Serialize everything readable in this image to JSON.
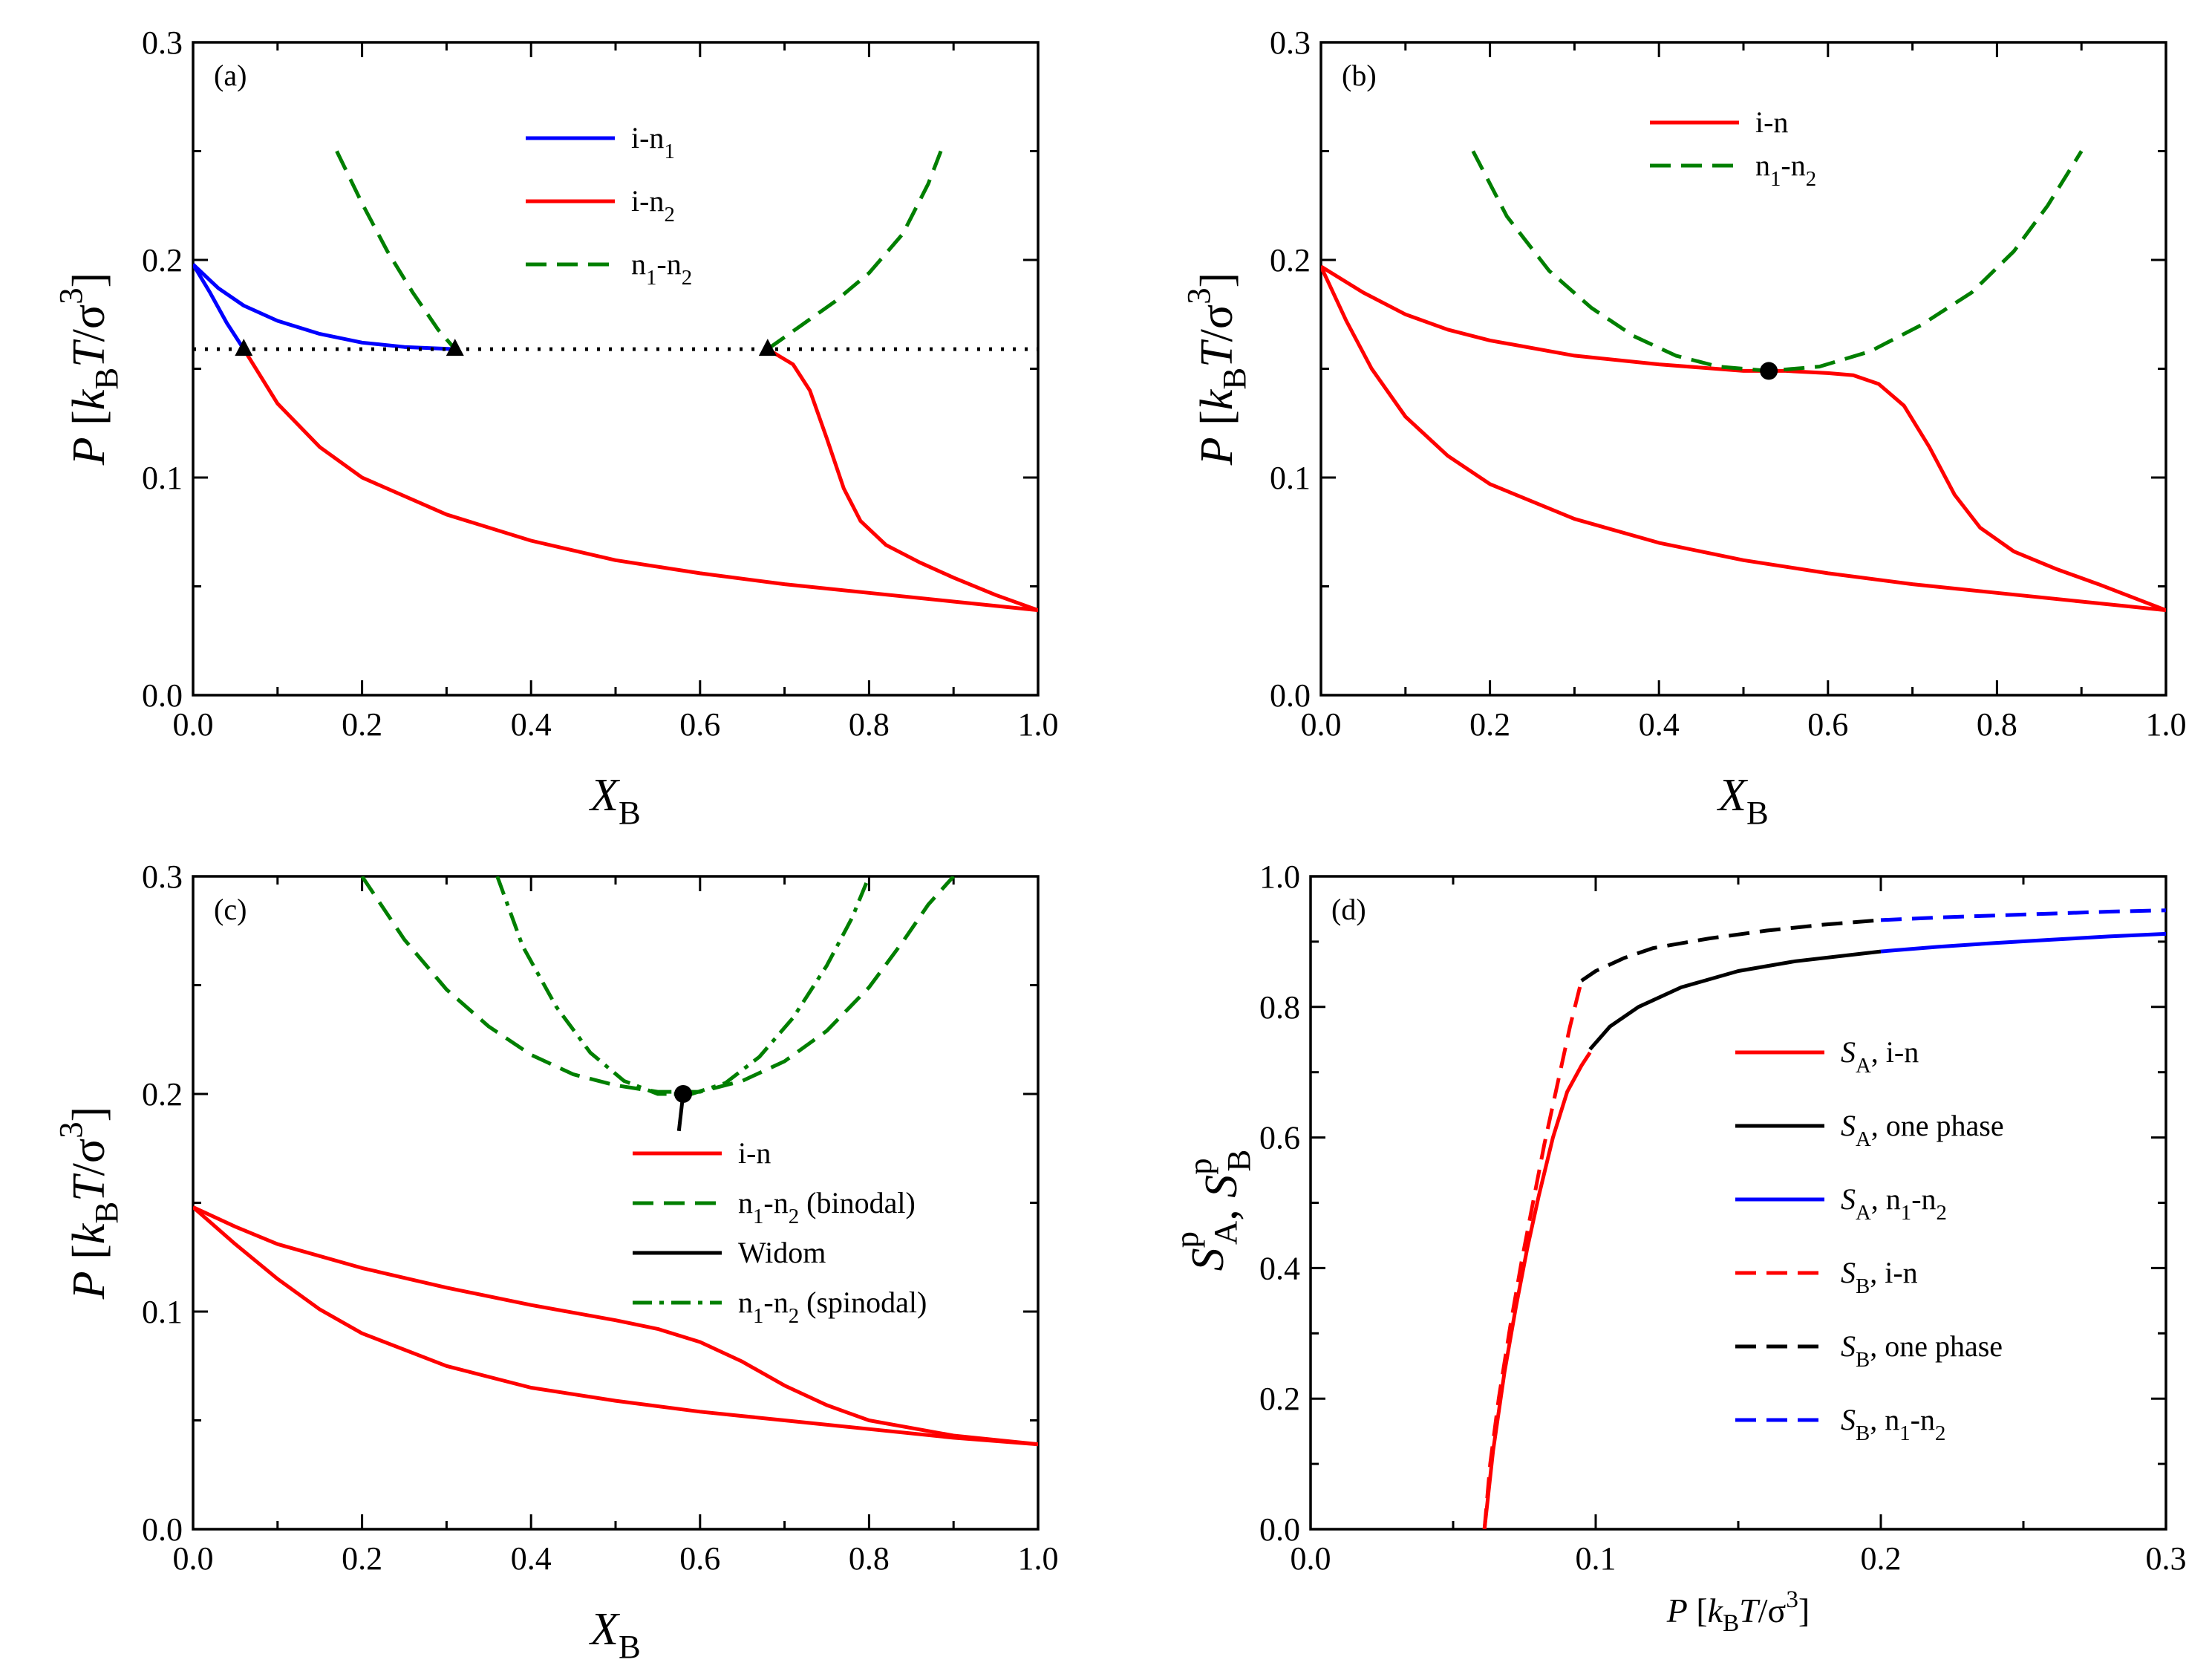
{
  "colors": {
    "blue": "#0000ff",
    "red": "#ff0000",
    "green": "#007f00",
    "black": "#000000"
  },
  "chart_data": [
    {
      "id": "a",
      "type": "line",
      "panel_label": "(a)",
      "xlabel": "X",
      "xlabel_sub": "B",
      "ylabel": "P [k_B T/σ^3]",
      "xlim": [
        0,
        1.0
      ],
      "ylim": [
        0,
        0.3
      ],
      "xticks": [
        "0.0",
        "0.2",
        "0.4",
        "0.6",
        "0.8",
        "1.0"
      ],
      "yticks": [
        "0.0",
        "0.1",
        "0.2",
        "0.3"
      ],
      "legend_position": "top-center",
      "legend": [
        {
          "main": "i-n",
          "sub": "1",
          "rest": "",
          "color": "blue",
          "dash": "solid"
        },
        {
          "main": "i-n",
          "sub": "2",
          "rest": "",
          "color": "red",
          "dash": "solid"
        },
        {
          "main": "n",
          "sub": "1",
          "rest": "-n",
          "sub2": "2",
          "color": "green",
          "dash": "dashed"
        }
      ],
      "series": [
        {
          "name": "i-n1 left",
          "color": "blue",
          "dash": "solid",
          "x": [
            0,
            0.03,
            0.06,
            0.1,
            0.15,
            0.2,
            0.25,
            0.31
          ],
          "y": [
            0.198,
            0.187,
            0.179,
            0.172,
            0.166,
            0.162,
            0.16,
            0.159
          ]
        },
        {
          "name": "i-n1 right",
          "color": "blue",
          "dash": "solid",
          "x": [
            0,
            0.02,
            0.04,
            0.06
          ],
          "y": [
            0.198,
            0.185,
            0.171,
            0.159
          ]
        },
        {
          "name": "i-n2 lower",
          "color": "red",
          "dash": "solid",
          "x": [
            0.06,
            0.1,
            0.15,
            0.2,
            0.3,
            0.4,
            0.5,
            0.6,
            0.7,
            0.8,
            0.9,
            1.0
          ],
          "y": [
            0.159,
            0.134,
            0.114,
            0.1,
            0.083,
            0.071,
            0.062,
            0.056,
            0.051,
            0.047,
            0.043,
            0.039
          ]
        },
        {
          "name": "i-n2 upper",
          "color": "red",
          "dash": "solid",
          "x": [
            0.68,
            0.71,
            0.73,
            0.75,
            0.77,
            0.79,
            0.82,
            0.86,
            0.9,
            0.95,
            1.0
          ],
          "y": [
            0.159,
            0.152,
            0.14,
            0.118,
            0.095,
            0.08,
            0.069,
            0.061,
            0.054,
            0.046,
            0.039
          ]
        },
        {
          "name": "n1-n2 left",
          "color": "green",
          "dash": "dashed",
          "x": [
            0.17,
            0.2,
            0.23,
            0.26,
            0.29,
            0.31
          ],
          "y": [
            0.25,
            0.226,
            0.204,
            0.185,
            0.168,
            0.159
          ]
        },
        {
          "name": "n1-n2 right",
          "color": "green",
          "dash": "dashed",
          "x": [
            0.68,
            0.72,
            0.76,
            0.8,
            0.84,
            0.87,
            0.885
          ],
          "y": [
            0.159,
            0.17,
            0.181,
            0.194,
            0.212,
            0.235,
            0.25
          ]
        },
        {
          "name": "three-phase line",
          "color": "black",
          "dash": "dotted",
          "x": [
            0,
            1.0
          ],
          "y": [
            0.159,
            0.159
          ]
        }
      ],
      "markers": {
        "shape": "triangle",
        "x": [
          0.06,
          0.31,
          0.68
        ],
        "y": [
          0.159,
          0.159,
          0.159
        ]
      }
    },
    {
      "id": "b",
      "type": "line",
      "panel_label": "(b)",
      "xlabel": "X",
      "xlabel_sub": "B",
      "ylabel": "P [k_B T/σ^3]",
      "xlim": [
        0,
        1.0
      ],
      "ylim": [
        0,
        0.3
      ],
      "xticks": [
        "0.0",
        "0.2",
        "0.4",
        "0.6",
        "0.8",
        "1.0"
      ],
      "yticks": [
        "0.0",
        "0.1",
        "0.2",
        "0.3"
      ],
      "legend_position": "top-center",
      "legend": [
        {
          "main": "i-n",
          "sub": "",
          "rest": "",
          "color": "red",
          "dash": "solid"
        },
        {
          "main": "n",
          "sub": "1",
          "rest": "-n",
          "sub2": "2",
          "color": "green",
          "dash": "dashed"
        }
      ],
      "series": [
        {
          "name": "i-n upper",
          "color": "red",
          "dash": "solid",
          "x": [
            0,
            0.05,
            0.1,
            0.15,
            0.2,
            0.3,
            0.4,
            0.5,
            0.55,
            0.6,
            0.63,
            0.66,
            0.69,
            0.72,
            0.75,
            0.78,
            0.82,
            0.87,
            0.92,
            1.0
          ],
          "y": [
            0.197,
            0.185,
            0.175,
            0.168,
            0.163,
            0.156,
            0.152,
            0.149,
            0.149,
            0.148,
            0.147,
            0.143,
            0.133,
            0.114,
            0.092,
            0.077,
            0.066,
            0.058,
            0.051,
            0.039
          ]
        },
        {
          "name": "i-n lower",
          "color": "red",
          "dash": "solid",
          "x": [
            0,
            0.03,
            0.06,
            0.1,
            0.15,
            0.2,
            0.3,
            0.4,
            0.5,
            0.6,
            0.7,
            0.8,
            0.9,
            1.0
          ],
          "y": [
            0.197,
            0.172,
            0.15,
            0.128,
            0.11,
            0.097,
            0.081,
            0.07,
            0.062,
            0.056,
            0.051,
            0.047,
            0.043,
            0.039
          ]
        },
        {
          "name": "n1-n2",
          "color": "green",
          "dash": "dashed",
          "x": [
            0.18,
            0.22,
            0.27,
            0.32,
            0.37,
            0.42,
            0.47,
            0.53,
            0.59,
            0.65,
            0.71,
            0.77,
            0.82,
            0.86,
            0.9
          ],
          "y": [
            0.25,
            0.22,
            0.195,
            0.178,
            0.165,
            0.156,
            0.151,
            0.149,
            0.151,
            0.158,
            0.17,
            0.185,
            0.204,
            0.225,
            0.25
          ]
        }
      ],
      "markers": {
        "shape": "circle",
        "x": [
          0.53
        ],
        "y": [
          0.149
        ]
      }
    },
    {
      "id": "c",
      "type": "line",
      "panel_label": "(c)",
      "xlabel": "X",
      "xlabel_sub": "B",
      "ylabel": "P [k_B T/σ^3]",
      "xlim": [
        0,
        1.0
      ],
      "ylim": [
        0,
        0.3
      ],
      "xticks": [
        "0.0",
        "0.2",
        "0.4",
        "0.6",
        "0.8",
        "1.0"
      ],
      "yticks": [
        "0.0",
        "0.1",
        "0.2",
        "0.3"
      ],
      "legend_position": "center-right",
      "legend": [
        {
          "main": "i-n",
          "sub": "",
          "rest": "",
          "color": "red",
          "dash": "solid"
        },
        {
          "main": "n",
          "sub": "1",
          "rest": "-n",
          "sub2": "2",
          "rest2": " (binodal)",
          "color": "green",
          "dash": "dashed"
        },
        {
          "main": "Widom",
          "sub": "",
          "rest": "",
          "color": "black",
          "dash": "solid"
        },
        {
          "main": "n",
          "sub": "1",
          "rest": "-n",
          "sub2": "2",
          "rest2": " (spinodal)",
          "color": "green",
          "dash": "dashdot"
        }
      ],
      "series": [
        {
          "name": "i-n upper",
          "color": "red",
          "dash": "solid",
          "x": [
            0,
            0.05,
            0.1,
            0.2,
            0.3,
            0.4,
            0.5,
            0.55,
            0.6,
            0.65,
            0.7,
            0.75,
            0.8,
            0.9,
            1.0
          ],
          "y": [
            0.148,
            0.139,
            0.131,
            0.12,
            0.111,
            0.103,
            0.096,
            0.092,
            0.086,
            0.077,
            0.066,
            0.057,
            0.05,
            0.043,
            0.039
          ]
        },
        {
          "name": "i-n lower",
          "color": "red",
          "dash": "solid",
          "x": [
            0,
            0.05,
            0.1,
            0.15,
            0.2,
            0.3,
            0.4,
            0.5,
            0.6,
            0.7,
            0.8,
            0.9,
            1.0
          ],
          "y": [
            0.148,
            0.131,
            0.115,
            0.101,
            0.09,
            0.075,
            0.065,
            0.059,
            0.054,
            0.05,
            0.046,
            0.042,
            0.039
          ]
        },
        {
          "name": "n1-n2 binodal",
          "color": "green",
          "dash": "dashed",
          "x": [
            0.2,
            0.25,
            0.3,
            0.35,
            0.4,
            0.45,
            0.5,
            0.55,
            0.6,
            0.65,
            0.7,
            0.75,
            0.8,
            0.84,
            0.87,
            0.9
          ],
          "y": [
            0.3,
            0.271,
            0.248,
            0.231,
            0.218,
            0.209,
            0.204,
            0.201,
            0.201,
            0.206,
            0.215,
            0.229,
            0.249,
            0.27,
            0.287,
            0.3
          ]
        },
        {
          "name": "n1-n2 spinodal",
          "color": "green",
          "dash": "dashdot",
          "x": [
            0.36,
            0.39,
            0.43,
            0.47,
            0.51,
            0.55,
            0.59,
            0.63,
            0.67,
            0.71,
            0.75,
            0.78,
            0.8
          ],
          "y": [
            0.3,
            0.268,
            0.24,
            0.219,
            0.206,
            0.2,
            0.2,
            0.205,
            0.217,
            0.235,
            0.259,
            0.281,
            0.3
          ]
        },
        {
          "name": "Widom line",
          "color": "black",
          "dash": "solid",
          "x": [
            0.575,
            0.58
          ],
          "y": [
            0.183,
            0.2
          ]
        }
      ],
      "markers": {
        "shape": "circle",
        "x": [
          0.58
        ],
        "y": [
          0.2
        ]
      }
    },
    {
      "id": "d",
      "type": "line",
      "panel_label": "(d)",
      "xlabel": "P [k_B T/σ^3]",
      "ylabel": "S_A^p, S_B^p",
      "xlim": [
        0,
        0.3
      ],
      "ylim": [
        0,
        1.0
      ],
      "xticks": [
        "0.0",
        "0.1",
        "0.2",
        "0.3"
      ],
      "yticks": [
        "0.0",
        "0.2",
        "0.4",
        "0.6",
        "0.8",
        "1.0"
      ],
      "legend_position": "center-right",
      "legend": [
        {
          "main": "S",
          "sub": "A",
          "rest": ", i-n",
          "color": "red",
          "dash": "solid"
        },
        {
          "main": "S",
          "sub": "A",
          "rest": ", one phase",
          "color": "black",
          "dash": "solid"
        },
        {
          "main": "S",
          "sub": "A",
          "rest": ", n",
          "sub2": "1",
          "rest2": "-n",
          "sub3": "2",
          "color": "blue",
          "dash": "solid"
        },
        {
          "main": "S",
          "sub": "B",
          "rest": ", i-n",
          "color": "red",
          "dash": "dashed"
        },
        {
          "main": "S",
          "sub": "B",
          "rest": ", one phase",
          "color": "black",
          "dash": "dashed"
        },
        {
          "main": "S",
          "sub": "B",
          "rest": ", n",
          "sub2": "1",
          "rest2": "-n",
          "sub3": "2",
          "color": "blue",
          "dash": "dashed"
        }
      ],
      "series": [
        {
          "name": "S_A, i-n",
          "color": "red",
          "dash": "solid",
          "x": [
            0.061,
            0.064,
            0.068,
            0.072,
            0.076,
            0.08,
            0.085,
            0.09,
            0.095,
            0.098
          ],
          "y": [
            0.0,
            0.12,
            0.24,
            0.34,
            0.43,
            0.51,
            0.6,
            0.67,
            0.71,
            0.73
          ]
        },
        {
          "name": "S_A, one phase",
          "color": "black",
          "dash": "solid",
          "x": [
            0.098,
            0.105,
            0.115,
            0.13,
            0.15,
            0.17,
            0.2
          ],
          "y": [
            0.735,
            0.77,
            0.8,
            0.83,
            0.855,
            0.87,
            0.885
          ]
        },
        {
          "name": "S_A, n1-n2",
          "color": "blue",
          "dash": "solid",
          "x": [
            0.2,
            0.22,
            0.24,
            0.26,
            0.28,
            0.3
          ],
          "y": [
            0.885,
            0.892,
            0.898,
            0.903,
            0.908,
            0.912
          ]
        },
        {
          "name": "S_B, i-n",
          "color": "red",
          "dash": "dashed",
          "x": [
            0.061,
            0.063,
            0.066,
            0.07,
            0.074,
            0.078,
            0.082,
            0.087,
            0.091,
            0.095
          ],
          "y": [
            0.0,
            0.1,
            0.2,
            0.31,
            0.41,
            0.5,
            0.59,
            0.69,
            0.77,
            0.84
          ]
        },
        {
          "name": "S_B, one phase",
          "color": "black",
          "dash": "dashed",
          "x": [
            0.095,
            0.1,
            0.11,
            0.12,
            0.14,
            0.16,
            0.18,
            0.2
          ],
          "y": [
            0.84,
            0.855,
            0.875,
            0.89,
            0.905,
            0.917,
            0.926,
            0.933
          ]
        },
        {
          "name": "S_B, n1-n2",
          "color": "blue",
          "dash": "dashed",
          "x": [
            0.2,
            0.22,
            0.24,
            0.26,
            0.28,
            0.3
          ],
          "y": [
            0.933,
            0.937,
            0.94,
            0.943,
            0.946,
            0.948
          ]
        }
      ]
    }
  ]
}
